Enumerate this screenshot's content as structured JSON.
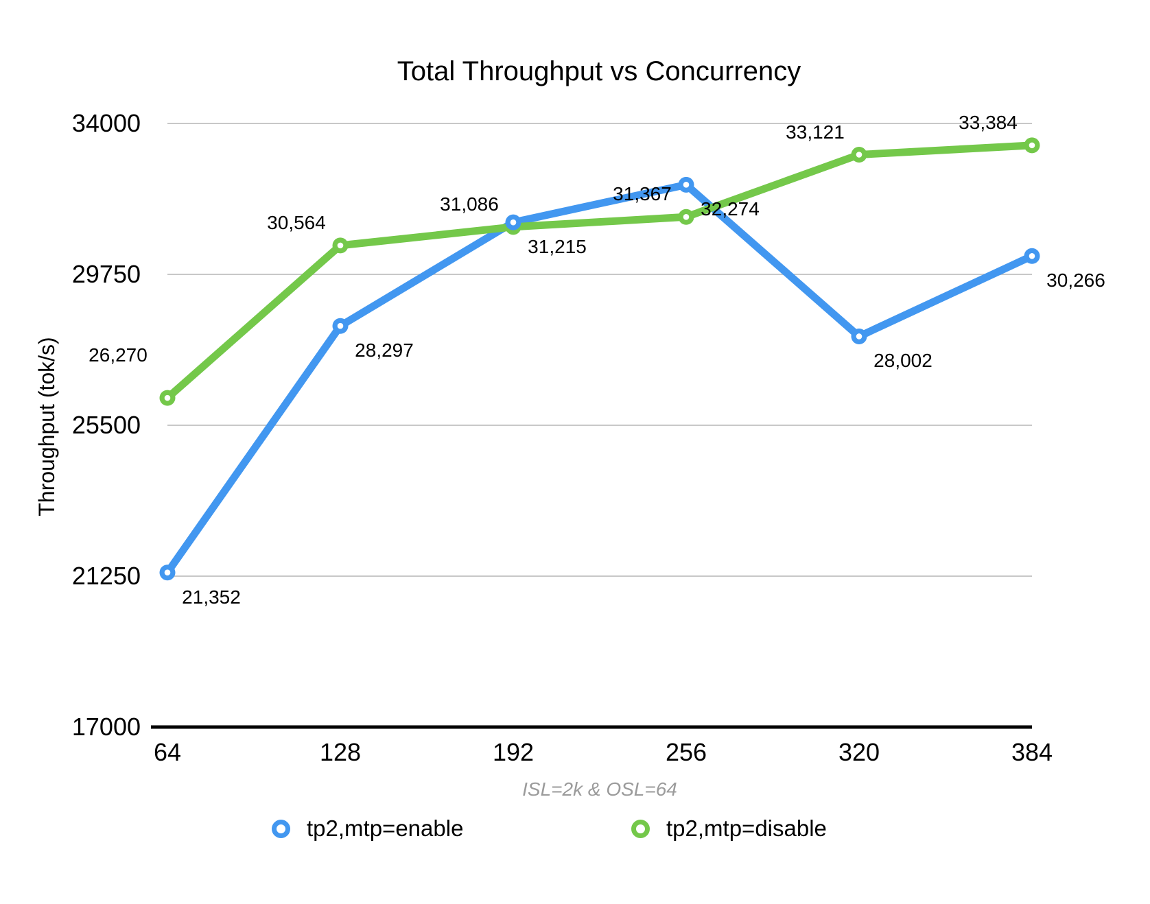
{
  "chart_data": {
    "type": "line",
    "title": "Total Throughput vs Concurrency",
    "ylabel": "Throughput (tok/s)",
    "xlabel_note": "ISL=2k & OSL=64",
    "categories": [
      "64",
      "128",
      "192",
      "256",
      "320",
      "384"
    ],
    "yticks": [
      "34000",
      "29750",
      "25500",
      "21250",
      "17000"
    ],
    "ylim": [
      17000,
      34000
    ],
    "grid": true,
    "legend_position": "bottom",
    "series": [
      {
        "name": "tp2,mtp=enable",
        "color": "#4297F0",
        "values": [
          21352,
          28297,
          31215,
          32274,
          28002,
          30266
        ],
        "labels": [
          "21,352",
          "28,297",
          "31,215",
          "32,274",
          "28,002",
          "30,266"
        ]
      },
      {
        "name": "tp2,mtp=disable",
        "color": "#74C84A",
        "values": [
          26270,
          30564,
          31086,
          31367,
          33121,
          33384
        ],
        "labels": [
          "26,270",
          "30,564",
          "31,086",
          "31,367",
          "33,121",
          "33,384"
        ]
      }
    ],
    "colors": {
      "gridline": "#C8C8C8",
      "axis": "#000000",
      "subtitle_text": "#9B9B9B",
      "text": "#000000",
      "background": "#FFFFFF"
    }
  }
}
